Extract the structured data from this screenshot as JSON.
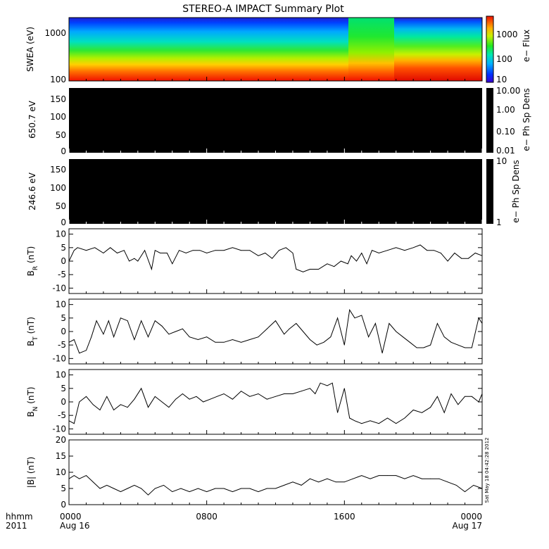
{
  "title": "STEREO-A IMPACT Summary Plot",
  "timestamp": "Sat May 18 04:42:28 2012",
  "time_axis": {
    "row1_label": "hhmm",
    "row2_label": "2011",
    "ticks": [
      {
        "hour": 0,
        "time": "0000",
        "date": "Aug 16"
      },
      {
        "hour": 8,
        "time": "0800",
        "date": ""
      },
      {
        "hour": 16,
        "time": "1600",
        "date": ""
      },
      {
        "hour": 24,
        "time": "0000",
        "date": "Aug 17"
      }
    ]
  },
  "colorbars": [
    {
      "ticks": [
        "10",
        "100",
        "1000"
      ],
      "label": "e− Flux"
    },
    {
      "ticks": [
        "10.00",
        "1.00",
        "0.10",
        "0.01"
      ],
      "label": "e− Ph Sp Dens"
    },
    {
      "ticks": [
        "10",
        "1"
      ],
      "label": "e− Ph Sp Dens"
    }
  ],
  "chart_data": [
    {
      "type": "heatmap",
      "ylabel": "SWEA (eV)",
      "yticks": [
        "1000",
        "100"
      ],
      "yscale": "log",
      "ylim": [
        100,
        2000
      ],
      "colorbar_label": "e− Flux",
      "colorbar_range": [
        10,
        8000
      ],
      "description_values": "electron flux spectrogram"
    },
    {
      "type": "heatmap",
      "ylabel": "650.7 eV",
      "yticks": [
        "150",
        "100",
        "50",
        "0"
      ],
      "ylim": [
        0,
        180
      ],
      "fill": "#000000"
    },
    {
      "type": "heatmap",
      "ylabel": "246.6 eV",
      "yticks": [
        "150",
        "100",
        "50",
        "0"
      ],
      "ylim": [
        0,
        180
      ],
      "fill": "#000000"
    },
    {
      "type": "line",
      "ylabel": "B_R (nT)",
      "ylabel_main": "B",
      "ylabel_sub": "R",
      "ylabel_unit": " (nT)",
      "ylim": [
        -12,
        12
      ],
      "yticks": [
        10,
        5,
        0,
        -5,
        -10
      ],
      "x": [
        0,
        0.3,
        0.5,
        1,
        1.5,
        2,
        2.4,
        2.8,
        3.2,
        3.5,
        3.8,
        4.0,
        4.4,
        4.8,
        5.0,
        5.3,
        5.7,
        6.0,
        6.4,
        6.8,
        7.2,
        7.6,
        8.0,
        8.5,
        9,
        9.5,
        10,
        10.5,
        11,
        11.4,
        11.8,
        12.2,
        12.6,
        13.0,
        13.2,
        13.6,
        14,
        14.5,
        15,
        15.4,
        15.8,
        16.2,
        16.4,
        16.7,
        17.0,
        17.3,
        17.6,
        18,
        18.5,
        19,
        19.5,
        20,
        20.4,
        20.8,
        21.2,
        21.6,
        22,
        22.4,
        22.8,
        23.2,
        23.6,
        24
      ],
      "y": [
        0,
        4,
        5,
        4,
        5,
        3,
        5,
        3,
        4,
        0,
        1,
        0,
        4,
        -3,
        4,
        3,
        3,
        -1,
        4,
        3,
        4,
        4,
        3,
        4,
        4,
        5,
        4,
        4,
        2,
        3,
        1,
        4,
        5,
        3,
        -3,
        -4,
        -3,
        -3,
        -1,
        -2,
        0,
        -1,
        2,
        0,
        3,
        -1,
        4,
        3,
        4,
        5,
        4,
        5,
        6,
        4,
        4,
        3,
        0,
        3,
        1,
        1,
        3,
        2
      ]
    },
    {
      "type": "line",
      "ylabel": "B_T (nT)",
      "ylabel_main": "B",
      "ylabel_sub": "T",
      "ylabel_unit": " (nT)",
      "ylim": [
        -12,
        12
      ],
      "yticks": [
        10,
        5,
        0,
        -5,
        -10
      ],
      "x": [
        0,
        0.3,
        0.6,
        1.0,
        1.3,
        1.6,
        2.0,
        2.3,
        2.6,
        3.0,
        3.4,
        3.8,
        4.2,
        4.6,
        5.0,
        5.4,
        5.8,
        6.2,
        6.6,
        7,
        7.5,
        8,
        8.5,
        9,
        9.5,
        10,
        10.5,
        11,
        11.5,
        12,
        12.5,
        12.8,
        13.2,
        13.6,
        14,
        14.4,
        14.8,
        15.2,
        15.6,
        16.0,
        16.3,
        16.6,
        17,
        17.4,
        17.8,
        18.2,
        18.6,
        19,
        19.4,
        19.8,
        20.2,
        20.6,
        21,
        21.4,
        21.8,
        22.2,
        22.6,
        23,
        23.4,
        23.8,
        24
      ],
      "y": [
        -4,
        -3,
        -8,
        -7,
        -2,
        4,
        -1,
        4,
        -2,
        5,
        4,
        -3,
        4,
        -2,
        4,
        2,
        -1,
        0,
        1,
        -2,
        -3,
        -2,
        -4,
        -4,
        -3,
        -4,
        -3,
        -2,
        1,
        4,
        -1,
        1,
        3,
        0,
        -3,
        -5,
        -4,
        -2,
        5,
        -5,
        8,
        5,
        6,
        -2,
        3,
        -8,
        3,
        0,
        -2,
        -4,
        -6,
        -6,
        -5,
        3,
        -2,
        -4,
        -5,
        -6,
        -6,
        5,
        3
      ]
    },
    {
      "type": "line",
      "ylabel": "B_N (nT)",
      "ylabel_main": "B",
      "ylabel_sub": "N",
      "ylabel_unit": " (nT)",
      "ylim": [
        -12,
        12
      ],
      "yticks": [
        10,
        5,
        0,
        -5,
        -10
      ],
      "x": [
        0,
        0.3,
        0.6,
        1.0,
        1.4,
        1.8,
        2.2,
        2.6,
        3.0,
        3.4,
        3.8,
        4.2,
        4.6,
        5.0,
        5.4,
        5.8,
        6.2,
        6.6,
        7.0,
        7.4,
        7.8,
        8.2,
        8.6,
        9,
        9.5,
        10,
        10.5,
        11,
        11.5,
        12,
        12.5,
        13,
        13.5,
        14,
        14.3,
        14.6,
        15,
        15.3,
        15.6,
        16.0,
        16.3,
        16.6,
        17,
        17.5,
        18,
        18.5,
        19,
        19.5,
        20,
        20.5,
        21,
        21.4,
        21.8,
        22.2,
        22.6,
        23,
        23.4,
        23.8,
        24
      ],
      "y": [
        -7,
        -8,
        0,
        2,
        -1,
        -3,
        2,
        -3,
        -1,
        -2,
        1,
        5,
        -2,
        2,
        0,
        -2,
        1,
        3,
        1,
        2,
        0,
        1,
        2,
        3,
        1,
        4,
        2,
        3,
        1,
        2,
        3,
        3,
        4,
        5,
        3,
        7,
        6,
        7,
        -4,
        5,
        -6,
        -7,
        -8,
        -7,
        -8,
        -6,
        -8,
        -6,
        -3,
        -4,
        -2,
        2,
        -4,
        3,
        -1,
        2,
        2,
        0,
        3
      ]
    },
    {
      "type": "line",
      "ylabel": "|B| (nT)",
      "ylabel_main": "|B|",
      "ylabel_sub": "",
      "ylabel_unit": " (nT)",
      "ylim": [
        0,
        20
      ],
      "yticks": [
        20,
        15,
        10,
        5,
        0
      ],
      "x": [
        0,
        0.3,
        0.6,
        1.0,
        1.4,
        1.8,
        2.2,
        2.6,
        3.0,
        3.4,
        3.8,
        4.2,
        4.6,
        5.0,
        5.5,
        6,
        6.5,
        7,
        7.5,
        8,
        8.5,
        9,
        9.5,
        10,
        10.5,
        11,
        11.5,
        12,
        12.5,
        13,
        13.5,
        14,
        14.5,
        15,
        15.5,
        16,
        16.5,
        17,
        17.5,
        18,
        18.5,
        19,
        19.5,
        20,
        20.5,
        21,
        21.5,
        22,
        22.5,
        23,
        23.5,
        24
      ],
      "y": [
        8,
        9,
        8,
        9,
        7,
        5,
        6,
        5,
        4,
        5,
        6,
        5,
        3,
        5,
        6,
        4,
        5,
        4,
        5,
        4,
        5,
        5,
        4,
        5,
        5,
        4,
        5,
        5,
        6,
        7,
        6,
        8,
        7,
        8,
        7,
        7,
        8,
        9,
        8,
        9,
        9,
        9,
        8,
        9,
        8,
        8,
        8,
        7,
        6,
        4,
        6,
        5
      ]
    }
  ]
}
